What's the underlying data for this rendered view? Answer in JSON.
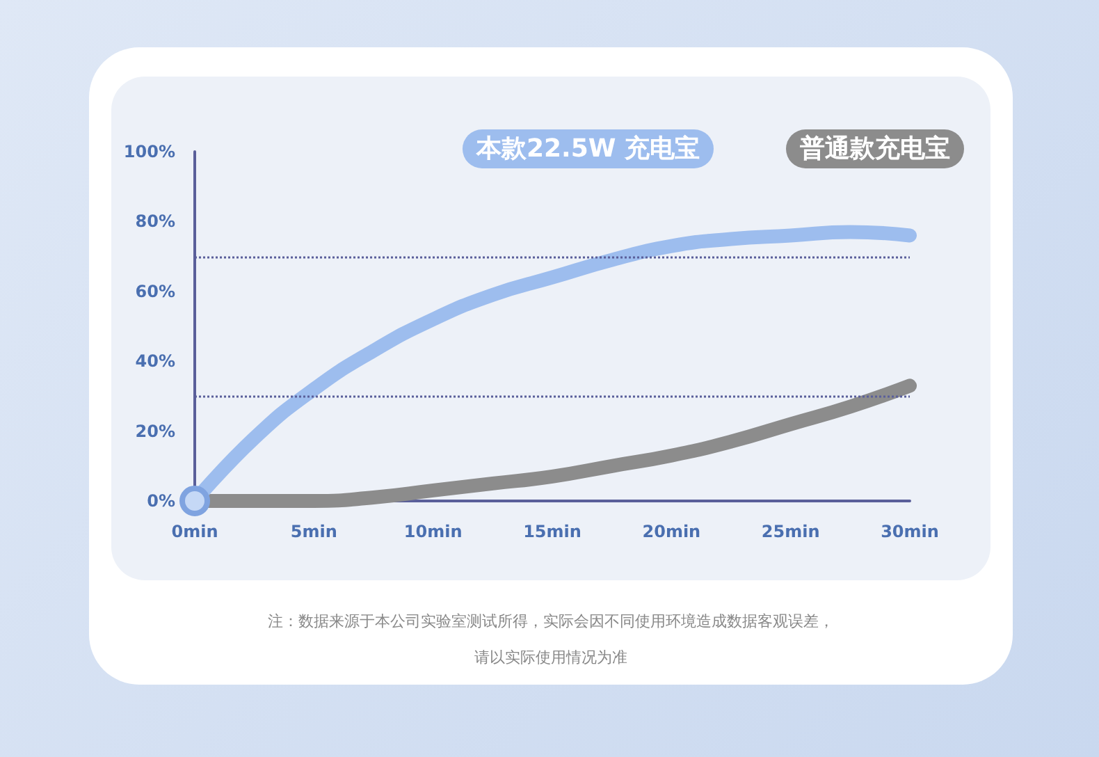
{
  "chart_data": {
    "type": "line",
    "x": [
      0,
      2.5,
      5,
      7.5,
      10,
      12.5,
      15,
      17.5,
      20,
      22.5,
      25,
      27.5,
      30
    ],
    "series": [
      {
        "name": "本款22.5W 充电宝",
        "color": "#9dbdee",
        "values": [
          0,
          18,
          32,
          43,
          52,
          59,
          64,
          69,
          73,
          75,
          76,
          77,
          76
        ]
      },
      {
        "name": "普通款充电宝",
        "color": "#8c8c8c",
        "values": [
          0,
          0,
          0,
          1,
          3,
          5,
          7,
          10,
          13,
          17,
          22,
          27,
          33
        ]
      }
    ],
    "xlim": [
      0,
      30
    ],
    "xticks": [
      {
        "value": 0,
        "label": "0min"
      },
      {
        "value": 5,
        "label": "5min"
      },
      {
        "value": 10,
        "label": "10min"
      },
      {
        "value": 15,
        "label": "15min"
      },
      {
        "value": 20,
        "label": "20min"
      },
      {
        "value": 25,
        "label": "25min"
      },
      {
        "value": 30,
        "label": "30min"
      }
    ],
    "ylim": [
      0,
      100
    ],
    "yticks": [
      {
        "value": 0,
        "label": "0%"
      },
      {
        "value": 20,
        "label": "20%"
      },
      {
        "value": 40,
        "label": "40%"
      },
      {
        "value": 60,
        "label": "60%"
      },
      {
        "value": 80,
        "label": "80%"
      },
      {
        "value": 100,
        "label": "100%"
      }
    ],
    "ref_lines": [
      {
        "axis": "y",
        "value": 70,
        "color": "#5a5f9a",
        "line_style": "dotted"
      },
      {
        "axis": "y",
        "value": 30,
        "color": "#5a5f9a",
        "line_style": "dotted"
      }
    ],
    "grid": false,
    "legend": "top right",
    "line_style": "solid",
    "annotations": [
      "注：数据来源于本公司实验室测试所得，实际会因不同使用环境造成数据客观误差，",
      "请以实际使用情况为准"
    ]
  }
}
